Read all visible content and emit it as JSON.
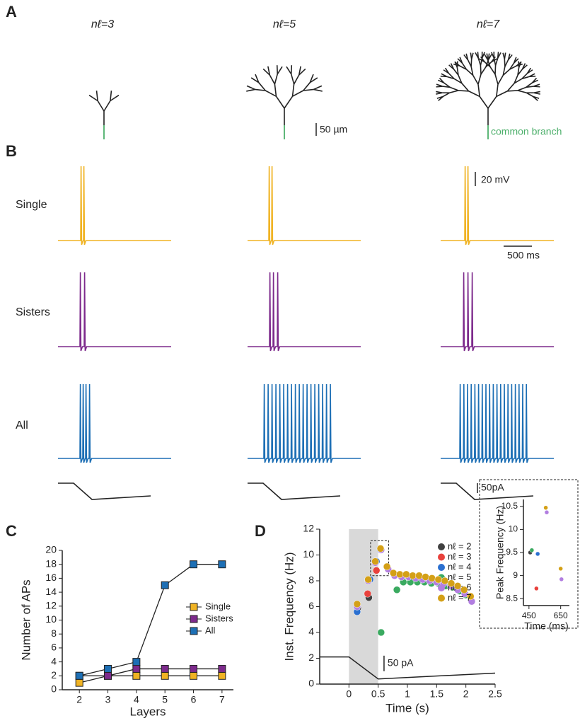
{
  "panel_a": {
    "label": "A",
    "titles": [
      "nℓ=3",
      "nℓ=5",
      "nℓ=7"
    ],
    "scale_bar": "50 µm",
    "annotation": "common branch"
  },
  "panel_b": {
    "label": "B",
    "rows": [
      "Single",
      "Sisters",
      "All"
    ],
    "voltage_scale": "20 mV",
    "time_scale": "500 ms",
    "current_scale": "50pA"
  },
  "chart_data": [
    {
      "type": "line",
      "panel": "C",
      "x_label": "Layers",
      "y_label": "Number of APs",
      "x": [
        2,
        3,
        4,
        5,
        6,
        7
      ],
      "xlim": [
        1.4,
        7.4
      ],
      "xticks": [
        2,
        3,
        4,
        5,
        6,
        7
      ],
      "ylim": [
        0,
        20
      ],
      "yticks": [
        0,
        2,
        4,
        6,
        8,
        10,
        12,
        14,
        16,
        18,
        20
      ],
      "series": [
        {
          "name": "Single",
          "color": "#f0b323",
          "values": [
            1,
            2,
            2,
            2,
            2,
            2
          ]
        },
        {
          "name": "Sisters",
          "color": "#7d2a8c",
          "values": [
            2,
            2,
            3,
            3,
            3,
            3
          ]
        },
        {
          "name": "All",
          "color": "#1d6fb5",
          "values": [
            2,
            3,
            4,
            15,
            18,
            18
          ]
        }
      ]
    },
    {
      "type": "scatter",
      "panel": "D",
      "x_label": "Time (s)",
      "y_label": "Inst. Frequency (Hz)",
      "stim_scale": "50 pA",
      "xlim": [
        -0.5,
        2.5
      ],
      "xticks": [
        0,
        0.5,
        1,
        1.5,
        2,
        2.5
      ],
      "ylim": [
        0,
        12
      ],
      "yticks": [
        0,
        2,
        4,
        6,
        8,
        10,
        12
      ],
      "shade": [
        0,
        0.5
      ],
      "series": [
        {
          "name": "nℓ = 2",
          "color": "#404040",
          "x": [
            0.15,
            0.34
          ],
          "values": [
            5.9,
            6.7
          ]
        },
        {
          "name": "nℓ = 3",
          "color": "#e8413c",
          "x": [
            0.32,
            0.47
          ],
          "values": [
            7.0,
            8.8
          ]
        },
        {
          "name": "nℓ = 4",
          "color": "#2a6fd0",
          "x": [
            0.14,
            0.36,
            0.47,
            0.54
          ],
          "values": [
            5.6,
            8.1,
            9.5,
            10.4
          ]
        },
        {
          "name": "nℓ = 5",
          "color": "#3aaa60",
          "x": [
            0.55,
            0.82,
            0.93,
            1.05,
            1.17,
            1.29,
            1.41,
            1.53,
            1.65,
            1.77,
            1.89,
            2.0
          ],
          "values": [
            4.0,
            7.3,
            7.9,
            7.9,
            7.9,
            7.9,
            7.8,
            7.8,
            7.6,
            7.5,
            7.2,
            6.9
          ]
        },
        {
          "name": "nℓ = 6",
          "color": "#b27ee0",
          "x": [
            0.14,
            0.33,
            0.45,
            0.55,
            0.67,
            0.78,
            0.9,
            1.02,
            1.14,
            1.26,
            1.38,
            1.5,
            1.62,
            1.74,
            1.86,
            1.98,
            2.1
          ],
          "values": [
            6.0,
            8.0,
            9.4,
            10.4,
            8.9,
            8.4,
            8.3,
            8.3,
            8.2,
            8.1,
            8.0,
            7.9,
            7.8,
            7.6,
            7.3,
            7.0,
            6.4
          ]
        },
        {
          "name": "nℓ = 7",
          "color": "#d4a017",
          "x": [
            0.14,
            0.33,
            0.45,
            0.54,
            0.65,
            0.76,
            0.87,
            0.98,
            1.09,
            1.2,
            1.31,
            1.42,
            1.53,
            1.64,
            1.75,
            1.86,
            1.97,
            2.08
          ],
          "values": [
            6.2,
            8.1,
            9.5,
            10.5,
            9.1,
            8.6,
            8.5,
            8.5,
            8.4,
            8.4,
            8.3,
            8.2,
            8.1,
            8.0,
            7.8,
            7.6,
            7.3,
            6.8
          ]
        }
      ]
    },
    {
      "type": "scatter",
      "x_label": "Time (ms)",
      "y_label": "Peak Frequency (Hz)",
      "xlim": [
        415,
        705
      ],
      "xticks": [
        450,
        650
      ],
      "ylim": [
        8.35,
        10.65
      ],
      "yticks": [
        8.5,
        9,
        9.5,
        10,
        10.5
      ],
      "series": [
        {
          "color": "#404040",
          "x": [
            458
          ],
          "values": [
            9.5
          ]
        },
        {
          "color": "#e8413c",
          "x": [
            497
          ],
          "values": [
            8.72
          ]
        },
        {
          "color": "#2a6fd0",
          "x": [
            505
          ],
          "values": [
            9.47
          ]
        },
        {
          "color": "#3aaa60",
          "x": [
            468
          ],
          "values": [
            9.55
          ]
        },
        {
          "color": "#b27ee0",
          "x": [
            562,
            655
          ],
          "values": [
            10.37,
            8.92
          ]
        },
        {
          "color": "#d4a017",
          "x": [
            556,
            650
          ],
          "values": [
            10.47,
            9.15
          ]
        }
      ]
    }
  ]
}
